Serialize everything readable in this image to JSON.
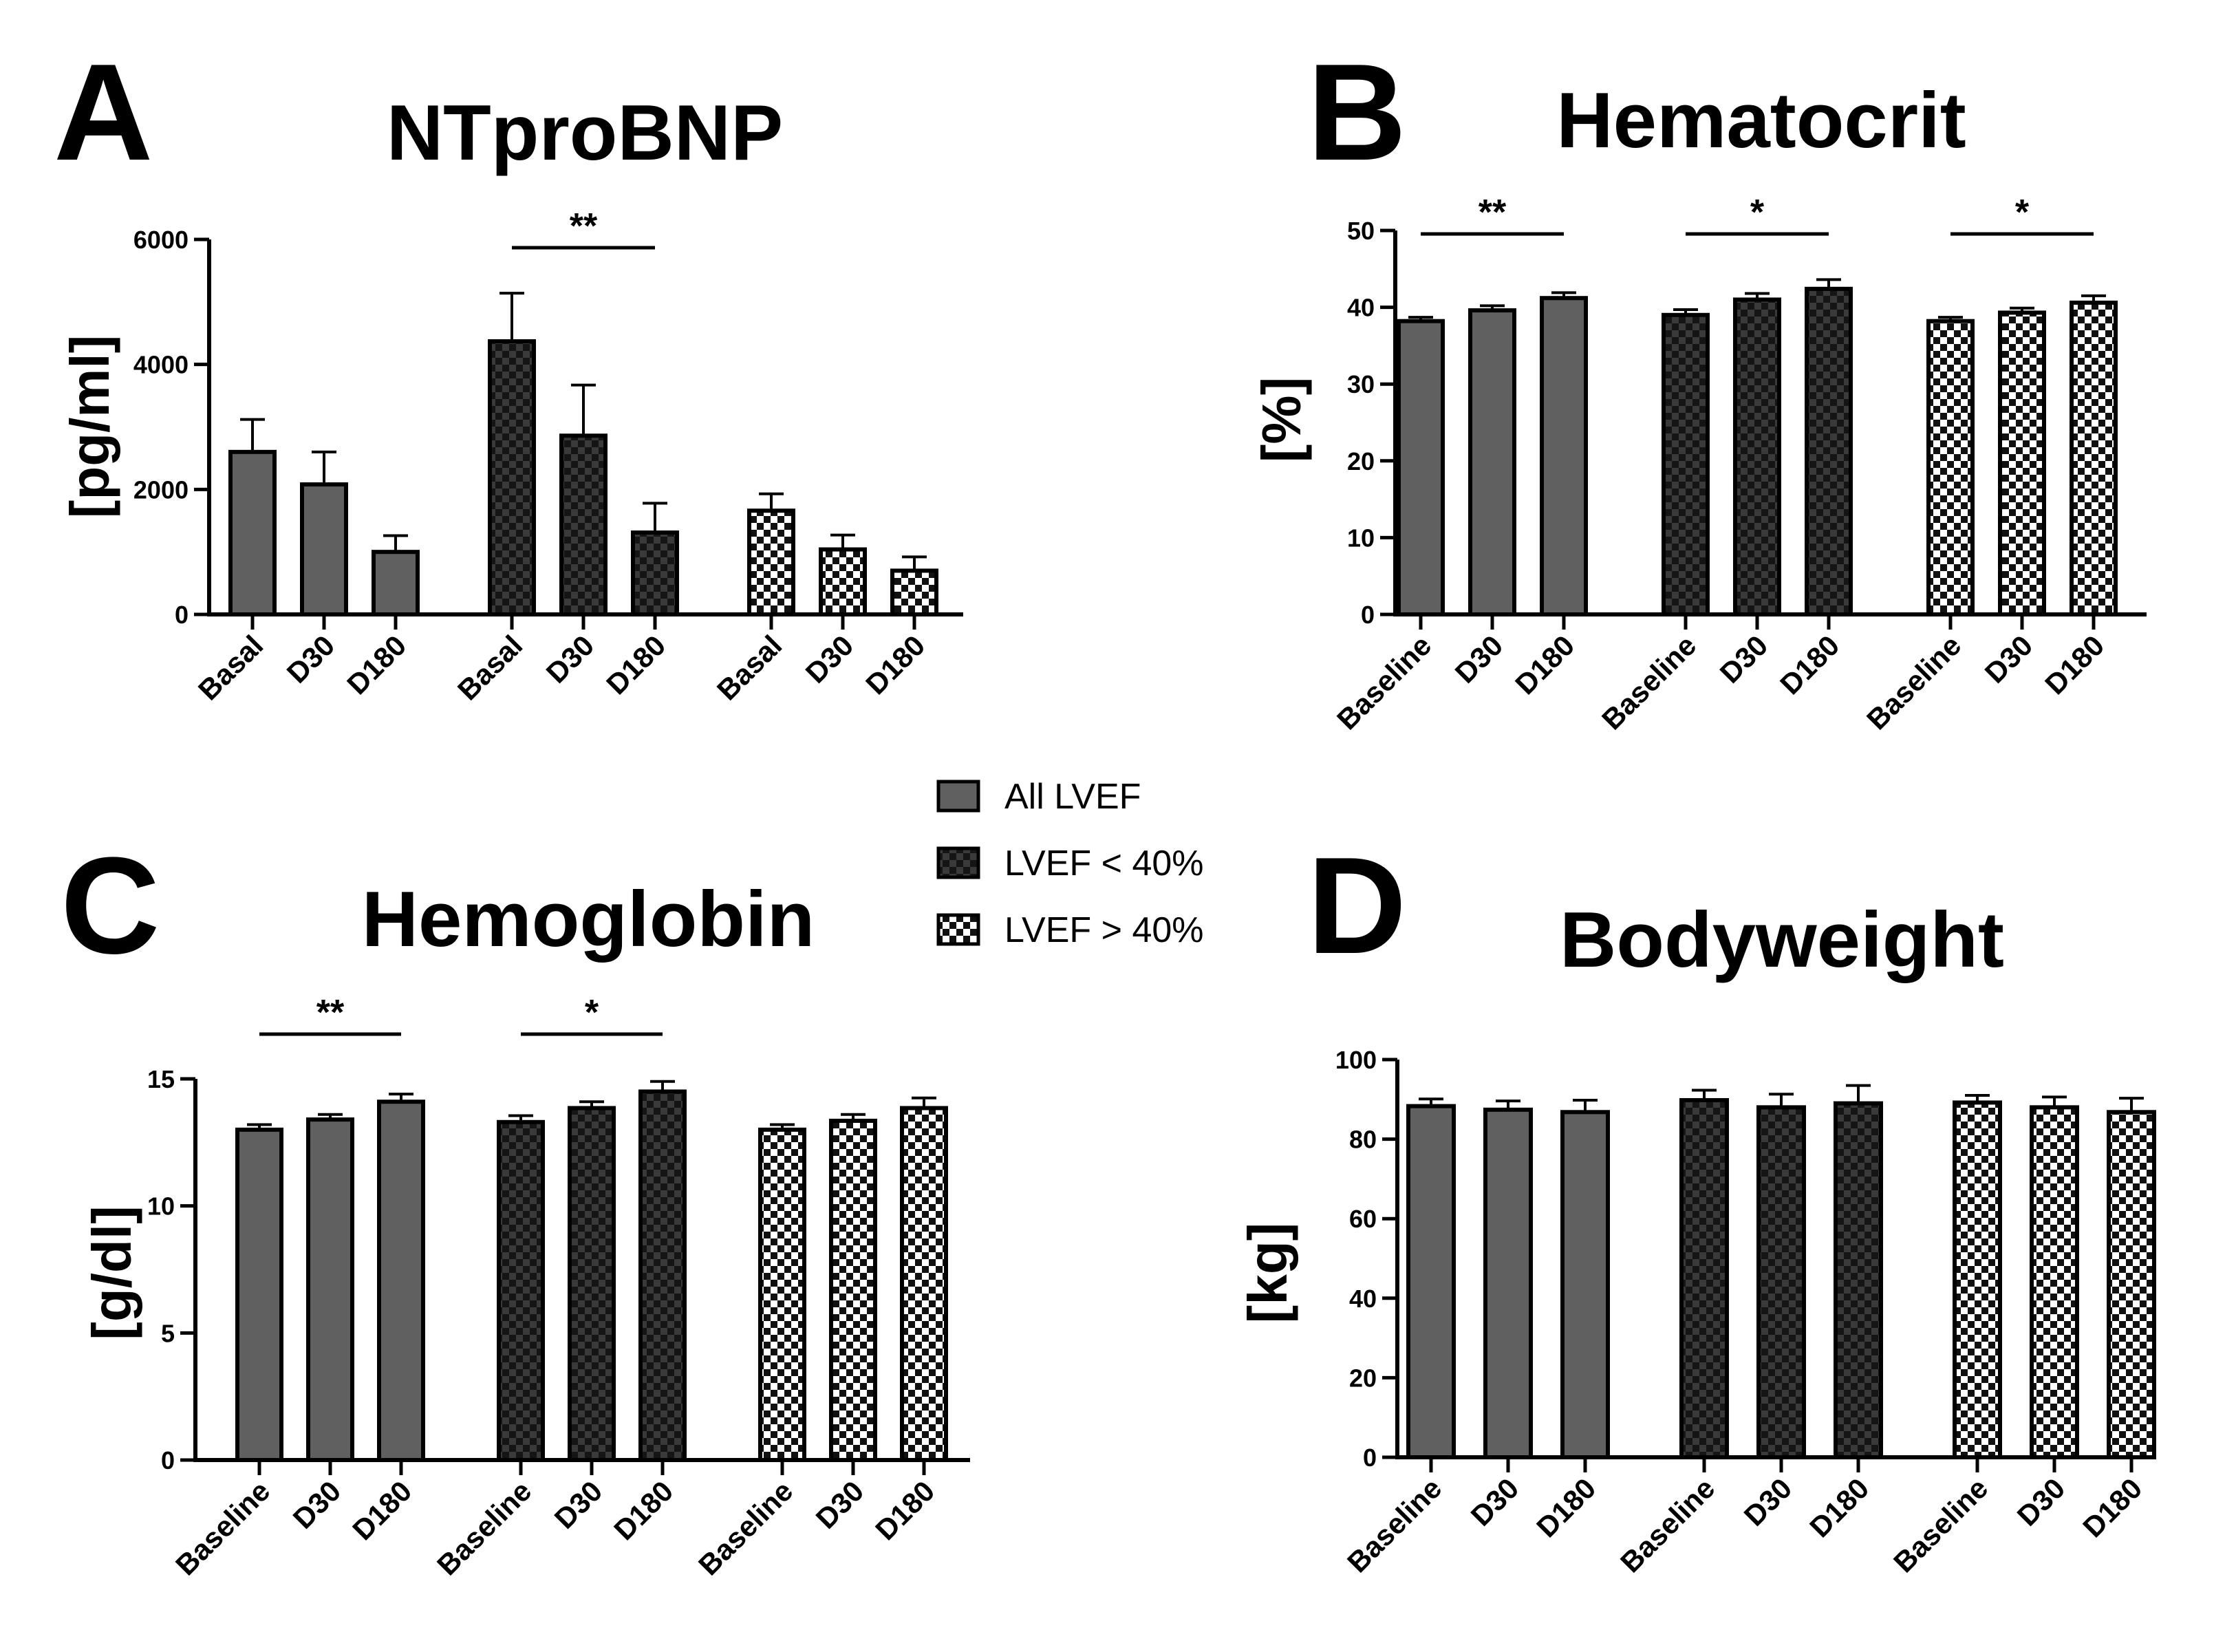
{
  "colors": {
    "bar_fill": "#606060",
    "axis": "#000000",
    "checker_dark": "#383838",
    "checker_mid": "#8a8a8a",
    "background": "#ffffff"
  },
  "legend": [
    {
      "label": "All LVEF",
      "pattern": "solid"
    },
    {
      "label": "LVEF < 40%",
      "pattern": "dark-checker"
    },
    {
      "label": "LVEF > 40%",
      "pattern": "light-checker"
    }
  ],
  "chart_data": [
    {
      "panel": "A",
      "type": "bar",
      "title": "NTproBNP",
      "ylabel": "[pg/ml]",
      "ylim": [
        0,
        6000
      ],
      "yticks": [
        0,
        2000,
        4000,
        6000
      ],
      "groups": [
        {
          "name": "All LVEF",
          "pattern": "solid",
          "categories": [
            "Basal",
            "D30",
            "D180"
          ],
          "values": [
            2600,
            2080,
            1000
          ],
          "errors": [
            520,
            520,
            260
          ]
        },
        {
          "name": "LVEF < 40%",
          "pattern": "dark-checker",
          "categories": [
            "Basal",
            "D30",
            "D180"
          ],
          "values": [
            4370,
            2860,
            1310
          ],
          "errors": [
            770,
            810,
            470
          ]
        },
        {
          "name": "LVEF > 40%",
          "pattern": "light-checker",
          "categories": [
            "Basal",
            "D30",
            "D180"
          ],
          "values": [
            1660,
            1040,
            700
          ],
          "errors": [
            270,
            230,
            220
          ]
        }
      ],
      "annotations": [
        {
          "text": "**",
          "group": 1,
          "from": 0,
          "to": 2
        }
      ]
    },
    {
      "panel": "B",
      "type": "bar",
      "title": "Hematocrit",
      "ylabel": "[%]",
      "ylim": [
        0,
        50
      ],
      "yticks": [
        0,
        10,
        20,
        30,
        40,
        50
      ],
      "groups": [
        {
          "name": "All LVEF",
          "pattern": "solid",
          "categories": [
            "Baseline",
            "D30",
            "D180"
          ],
          "values": [
            38.2,
            39.6,
            41.2
          ],
          "errors": [
            0.5,
            0.6,
            0.7
          ]
        },
        {
          "name": "LVEF < 40%",
          "pattern": "dark-checker",
          "categories": [
            "Baseline",
            "D30",
            "D180"
          ],
          "values": [
            39.0,
            41.0,
            42.4
          ],
          "errors": [
            0.7,
            0.8,
            1.2
          ]
        },
        {
          "name": "LVEF > 40%",
          "pattern": "light-checker",
          "categories": [
            "Baseline",
            "D30",
            "D180"
          ],
          "values": [
            38.2,
            39.3,
            40.6
          ],
          "errors": [
            0.5,
            0.6,
            0.9
          ]
        }
      ],
      "annotations": [
        {
          "text": "**",
          "group": 0,
          "from": 0,
          "to": 2
        },
        {
          "text": "*",
          "group": 1,
          "from": 0,
          "to": 2
        },
        {
          "text": "*",
          "group": 2,
          "from": 0,
          "to": 2
        }
      ]
    },
    {
      "panel": "C",
      "type": "bar",
      "title": "Hemoglobin",
      "ylabel": "[g/dl]",
      "ylim": [
        0,
        15
      ],
      "yticks": [
        0,
        5,
        10,
        15
      ],
      "groups": [
        {
          "name": "All LVEF",
          "pattern": "solid",
          "categories": [
            "Baseline",
            "D30",
            "D180"
          ],
          "values": [
            13.0,
            13.4,
            14.1
          ],
          "errors": [
            0.2,
            0.2,
            0.3
          ]
        },
        {
          "name": "LVEF < 40%",
          "pattern": "dark-checker",
          "categories": [
            "Baseline",
            "D30",
            "D180"
          ],
          "values": [
            13.3,
            13.85,
            14.5
          ],
          "errors": [
            0.25,
            0.25,
            0.4
          ]
        },
        {
          "name": "LVEF > 40%",
          "pattern": "light-checker",
          "categories": [
            "Baseline",
            "D30",
            "D180"
          ],
          "values": [
            13.0,
            13.35,
            13.85
          ],
          "errors": [
            0.2,
            0.25,
            0.4
          ]
        }
      ],
      "annotations": [
        {
          "text": "**",
          "group": 0,
          "from": 0,
          "to": 2
        },
        {
          "text": "*",
          "group": 1,
          "from": 0,
          "to": 2
        }
      ]
    },
    {
      "panel": "D",
      "type": "bar",
      "title": "Bodyweight",
      "ylabel": "[kg]",
      "ylim": [
        0,
        100
      ],
      "yticks": [
        0,
        20,
        40,
        60,
        80,
        100
      ],
      "groups": [
        {
          "name": "All LVEF",
          "pattern": "solid",
          "categories": [
            "Baseline",
            "D30",
            "D180"
          ],
          "values": [
            88.3,
            87.4,
            86.8
          ],
          "errors": [
            1.8,
            2.2,
            3.0
          ]
        },
        {
          "name": "LVEF < 40%",
          "pattern": "dark-checker",
          "categories": [
            "Baseline",
            "D30",
            "D180"
          ],
          "values": [
            89.8,
            88.0,
            89.0
          ],
          "errors": [
            2.5,
            3.3,
            4.5
          ]
        },
        {
          "name": "LVEF > 40%",
          "pattern": "light-checker",
          "categories": [
            "Baseline",
            "D30",
            "D180"
          ],
          "values": [
            89.2,
            88.0,
            86.8
          ],
          "errors": [
            1.8,
            2.6,
            3.5
          ]
        }
      ],
      "annotations": []
    }
  ]
}
